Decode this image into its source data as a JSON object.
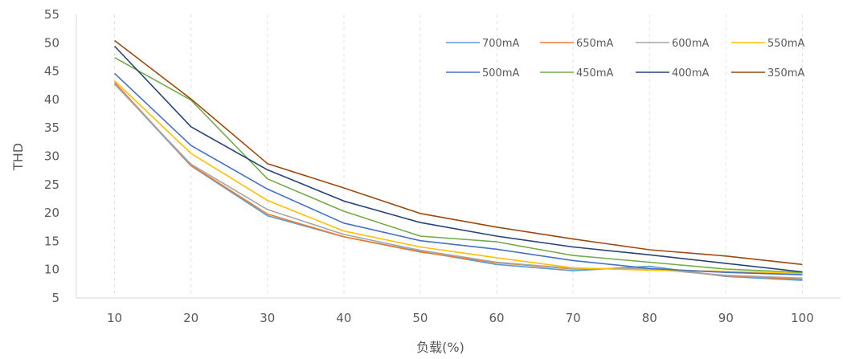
{
  "chart_data": {
    "type": "line",
    "xlabel": "负载(%)",
    "ylabel": "THD",
    "ylim": [
      5,
      55
    ],
    "yticks": [
      5,
      10,
      15,
      20,
      25,
      30,
      35,
      40,
      45,
      50,
      55
    ],
    "x": [
      10,
      20,
      30,
      40,
      50,
      60,
      70,
      80,
      90,
      100
    ],
    "grid": "vertical-dashed",
    "legend_position": "top-right",
    "series": [
      {
        "name": "700mA",
        "color": "#5b9bd5",
        "values": [
          42.8,
          28.3,
          19.5,
          15.8,
          13.2,
          10.9,
          9.8,
          10.6,
          8.8,
          8.1
        ]
      },
      {
        "name": "650mA",
        "color": "#ed7d31",
        "values": [
          43.0,
          28.4,
          19.8,
          15.8,
          13.1,
          11.2,
          10.1,
          10.2,
          8.9,
          8.3
        ]
      },
      {
        "name": "600mA",
        "color": "#a5a5a5",
        "values": [
          42.7,
          28.6,
          20.6,
          16.2,
          13.4,
          11.3,
          10.2,
          10.1,
          9.0,
          8.5
        ]
      },
      {
        "name": "550mA",
        "color": "#ffc000",
        "values": [
          43.3,
          30.5,
          22.2,
          16.8,
          14.0,
          12.1,
          10.3,
          9.9,
          9.7,
          9.3
        ]
      },
      {
        "name": "500mA",
        "color": "#4472c4",
        "values": [
          44.6,
          31.9,
          24.2,
          18.2,
          15.1,
          13.6,
          11.6,
          10.2,
          9.5,
          9.1
        ]
      },
      {
        "name": "450mA",
        "color": "#70ad47",
        "values": [
          47.4,
          39.9,
          26.0,
          20.3,
          15.9,
          14.9,
          12.5,
          11.3,
          10.1,
          9.5
        ]
      },
      {
        "name": "400mA",
        "color": "#264478",
        "values": [
          49.4,
          35.2,
          27.6,
          22.1,
          18.3,
          15.9,
          14.0,
          12.6,
          11.1,
          9.6
        ]
      },
      {
        "name": "350mA",
        "color": "#9e480e",
        "values": [
          50.4,
          40.1,
          28.7,
          24.4,
          19.9,
          17.5,
          15.4,
          13.5,
          12.4,
          10.9
        ]
      }
    ]
  }
}
